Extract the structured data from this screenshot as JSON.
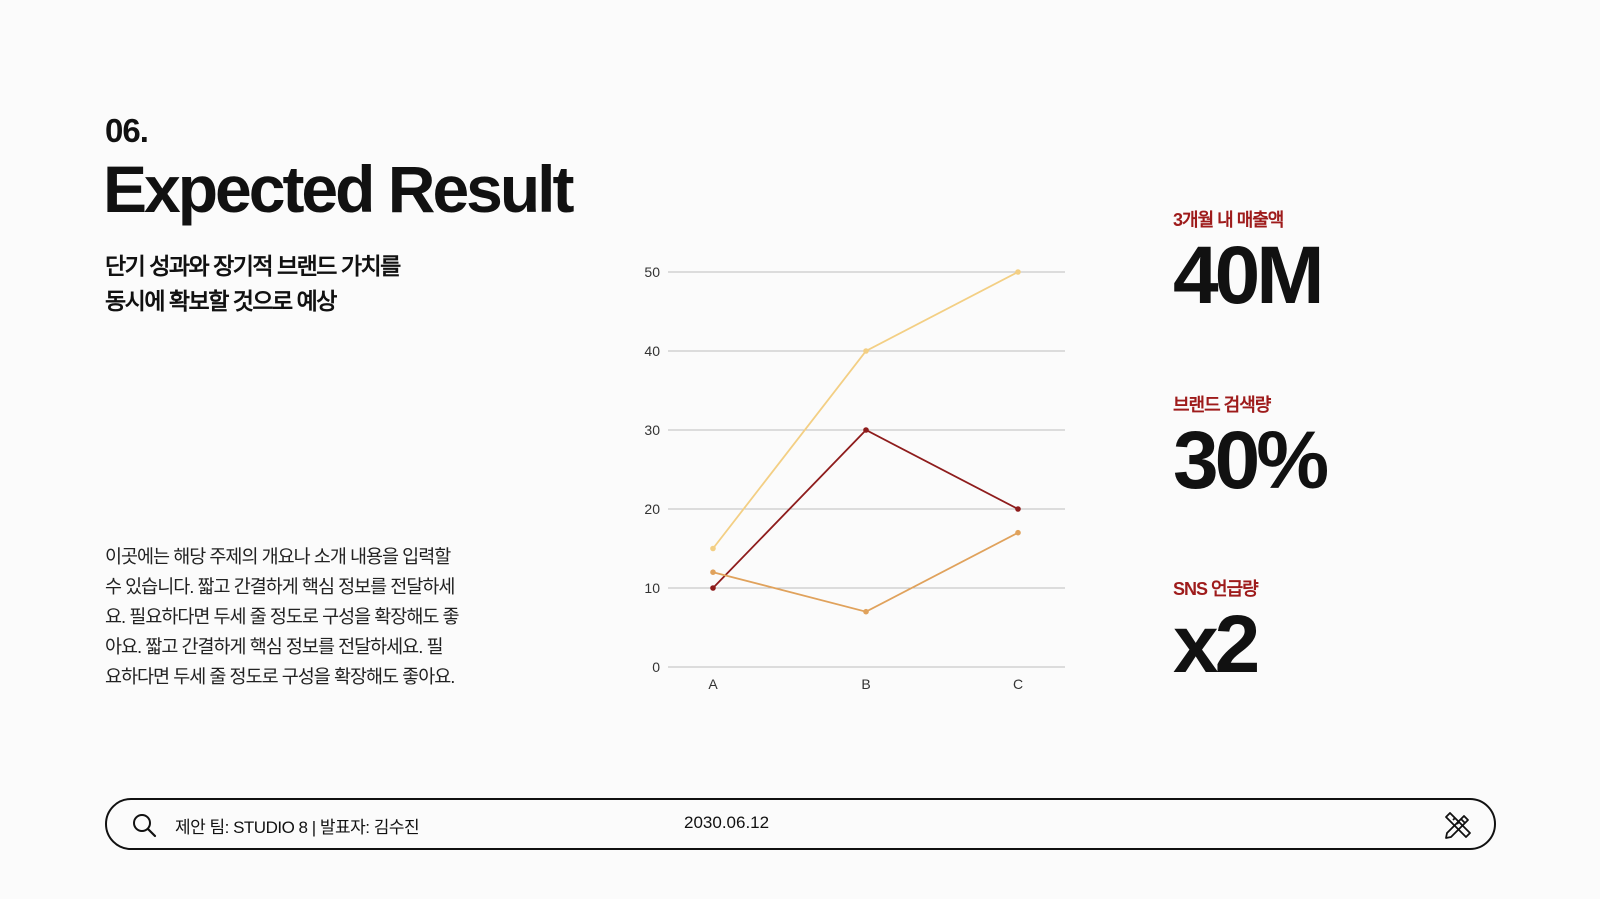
{
  "header": {
    "section_number": "06.",
    "title": "Expected Result",
    "subtitle_lines": [
      "단기 성과와 장기적 브랜드 가치를",
      "동시에 확보할 것으로 예상"
    ]
  },
  "body": {
    "lines": [
      "이곳에는 해당 주제의 개요나 소개 내용을 입력할",
      "수 있습니다. 짧고 간결하게 핵심 정보를 전달하세",
      "요. 필요하다면 두세 줄 정도로 구성을 확장해도 좋",
      "아요.  짧고 간결하게 핵심 정보를 전달하세요. 필",
      "요하다면 두세 줄 정도로 구성을 확장해도 좋아요."
    ]
  },
  "chart_data": {
    "type": "line",
    "categories": [
      "A",
      "B",
      "C"
    ],
    "ylim": [
      0,
      50
    ],
    "yticks": [
      0,
      10,
      20,
      30,
      40,
      50
    ],
    "grid": true,
    "series": [
      {
        "values": [
          15,
          40,
          50
        ],
        "color": "#f3cf84"
      },
      {
        "values": [
          10,
          30,
          20
        ],
        "color": "#8e1c1c"
      },
      {
        "values": [
          12,
          7,
          17
        ],
        "color": "#e0a25c"
      }
    ]
  },
  "stats": [
    {
      "label": "3개월 내 매출액",
      "value": "40M"
    },
    {
      "label": "브랜드 검색량",
      "value": "30%"
    },
    {
      "label": "SNS 언급량",
      "value": "x2"
    }
  ],
  "footer": {
    "team": "제안 팀: STUDIO 8 | 발표자: 김수진",
    "date": "2030.06.12",
    "left_icon": "search-icon",
    "right_icon": "pencil-ruler-icon"
  },
  "colors": {
    "accent": "#9e1b1b",
    "background": "#fbfbfb",
    "text": "#111111"
  }
}
